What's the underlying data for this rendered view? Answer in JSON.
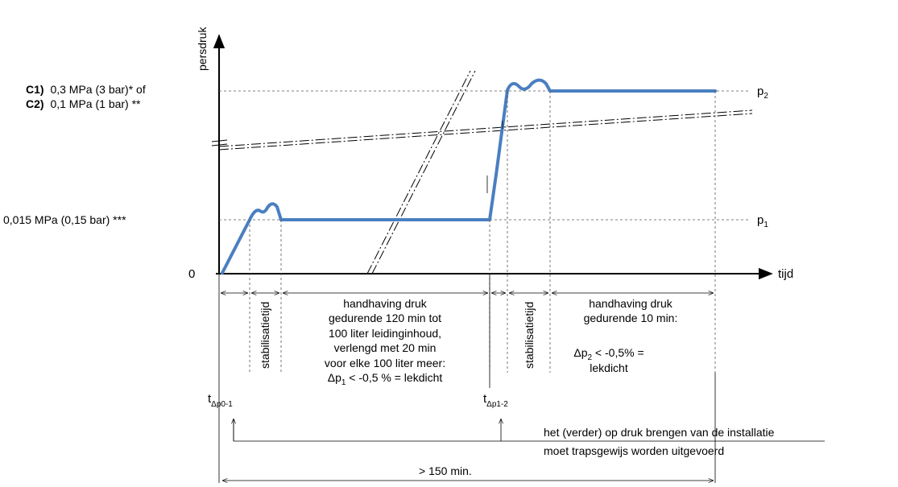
{
  "axes": {
    "y_label": "persdruk",
    "x_label": "tijd",
    "origin": "0"
  },
  "pressure_labels": {
    "c1_prefix": "C1)",
    "c1_text": "0,3 MPa (3 bar)*  of",
    "c2_prefix": "C2)",
    "c2_text": "0,1 MPa (1 bar) **",
    "low_text": "0,015 MPa  (0,15 bar) ***",
    "p1": "p",
    "p1_sub": "1",
    "p2": "p",
    "p2_sub": "2"
  },
  "phases": {
    "stabilization_1": "stabilisatietijd",
    "stabilization_2": "stabilisatietijd",
    "hold_1_lines": [
      "handhaving druk",
      "gedurende  120 min tot",
      "100 liter leidinginhoud,",
      "verlengd met 20 min",
      "voor elke 100 liter meer:"
    ],
    "hold_1_result_prefix": "Δp",
    "hold_1_result_sub": "1",
    "hold_1_result_suffix": " < -0,5 % = lekdicht",
    "hold_2_lines": [
      "handhaving druk",
      "gedurende 10 min:"
    ],
    "hold_2_result_prefix": "Δp",
    "hold_2_result_sub": "2",
    "hold_2_result_suffix": " < -0,5% =",
    "hold_2_result_line2": "lekdicht"
  },
  "time_marks": {
    "t1": "t",
    "t1_sub": "Δp0-1",
    "t2": "t",
    "t2_sub": "Δp1-2"
  },
  "notes": {
    "staged_line1": "het (verder) op druk brengen  van de installatie",
    "staged_line2": "moet trapsgewijs  worden uitgevoerd",
    "total_time": "> 150 min."
  },
  "colors": {
    "curve": "#4a7fc1",
    "lines": "#000000",
    "guides": "#555555"
  }
}
